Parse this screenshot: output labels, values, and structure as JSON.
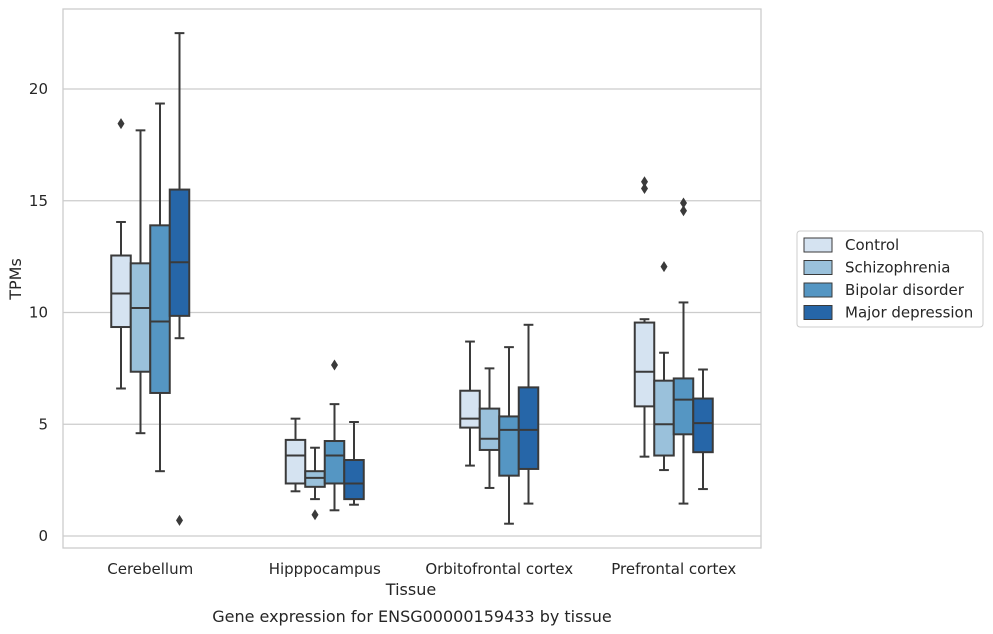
{
  "chart_data": {
    "type": "box",
    "xlabel": "Tissue",
    "ylabel": "TPMs",
    "caption": "Gene expression for ENSG00000159433 by tissue",
    "ylim": [
      -0.4,
      23.5
    ],
    "yticks": [
      0,
      5,
      10,
      15,
      20
    ],
    "grid": "horizontal",
    "legend_position": "right",
    "categories": [
      "Cerebellum",
      "Hipppocampus",
      "Orbitofrontal cortex",
      "Prefrontal cortex"
    ],
    "series": [
      {
        "name": "Control",
        "color": "#d5e3f1",
        "boxes": [
          {
            "whislo": 6.6,
            "q1": 9.35,
            "med": 10.85,
            "q3": 12.55,
            "whishi": 14.05,
            "fliers": [
              18.45
            ]
          },
          {
            "whislo": 2.0,
            "q1": 2.35,
            "med": 3.6,
            "q3": 4.3,
            "whishi": 5.25,
            "fliers": []
          },
          {
            "whislo": 3.15,
            "q1": 4.85,
            "med": 5.25,
            "q3": 6.5,
            "whishi": 8.7,
            "fliers": []
          },
          {
            "whislo": 3.55,
            "q1": 5.8,
            "med": 7.35,
            "q3": 9.55,
            "whishi": 9.7,
            "fliers": [
              15.55,
              15.85
            ]
          }
        ]
      },
      {
        "name": "Schizophrenia",
        "color": "#9ac1db",
        "boxes": [
          {
            "whislo": 4.6,
            "q1": 7.35,
            "med": 10.2,
            "q3": 12.2,
            "whishi": 18.15,
            "fliers": []
          },
          {
            "whislo": 1.65,
            "q1": 2.2,
            "med": 2.6,
            "q3": 2.9,
            "whishi": 3.95,
            "fliers": [
              0.95
            ]
          },
          {
            "whislo": 2.15,
            "q1": 3.85,
            "med": 4.35,
            "q3": 5.7,
            "whishi": 7.5,
            "fliers": []
          },
          {
            "whislo": 2.95,
            "q1": 3.6,
            "med": 5.0,
            "q3": 6.95,
            "whishi": 8.2,
            "fliers": [
              12.05
            ]
          }
        ]
      },
      {
        "name": "Bipolar disorder",
        "color": "#5596c3",
        "boxes": [
          {
            "whislo": 2.9,
            "q1": 6.4,
            "med": 9.6,
            "q3": 13.9,
            "whishi": 19.35,
            "fliers": []
          },
          {
            "whislo": 1.15,
            "q1": 2.35,
            "med": 3.6,
            "q3": 4.25,
            "whishi": 5.9,
            "fliers": [
              7.65
            ]
          },
          {
            "whislo": 0.55,
            "q1": 2.7,
            "med": 4.75,
            "q3": 5.35,
            "whishi": 8.45,
            "fliers": []
          },
          {
            "whislo": 1.45,
            "q1": 4.55,
            "med": 6.1,
            "q3": 7.05,
            "whishi": 10.45,
            "fliers": [
              14.55,
              14.9
            ]
          }
        ]
      },
      {
        "name": "Major depression",
        "color": "#2666a8",
        "boxes": [
          {
            "whislo": 8.85,
            "q1": 9.85,
            "med": 12.25,
            "q3": 15.5,
            "whishi": 22.5,
            "fliers": [
              0.7
            ]
          },
          {
            "whislo": 1.4,
            "q1": 1.65,
            "med": 2.35,
            "q3": 3.4,
            "whishi": 5.1,
            "fliers": []
          },
          {
            "whislo": 1.45,
            "q1": 3.0,
            "med": 4.75,
            "q3": 6.65,
            "whishi": 9.45,
            "fliers": []
          },
          {
            "whislo": 2.1,
            "q1": 3.75,
            "med": 5.05,
            "q3": 6.15,
            "whishi": 7.45,
            "fliers": []
          }
        ]
      }
    ]
  }
}
